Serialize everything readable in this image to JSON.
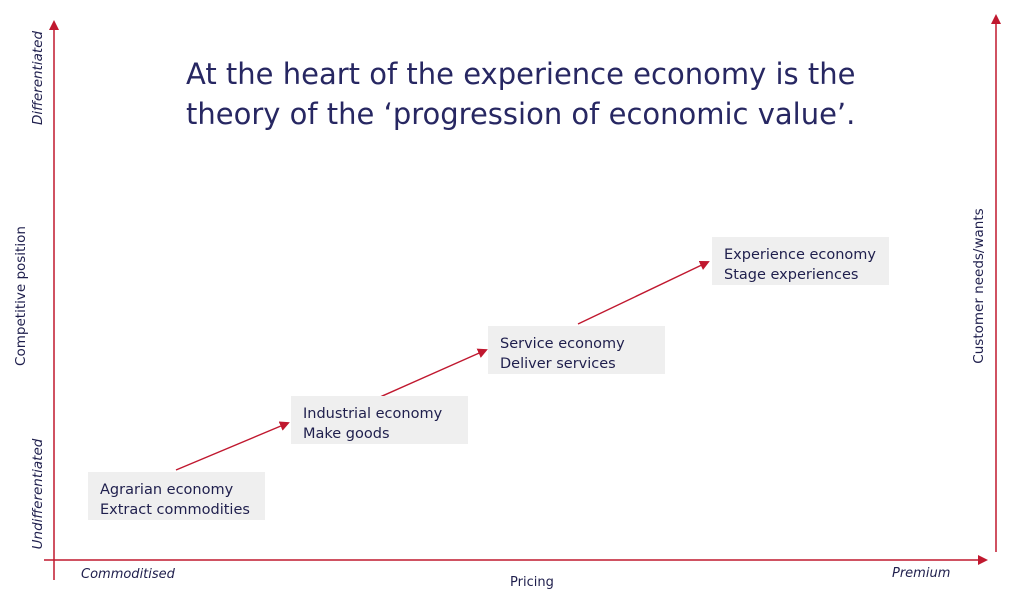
{
  "title": {
    "line1": "At the heart of the experience economy is the",
    "line2": "theory of the ‘progression of economic value’."
  },
  "axes": {
    "left_axis_label": "Competitive position",
    "left_top_label": "Differentiated",
    "left_bottom_label": "Undifferentiated",
    "right_axis_label": "Customer needs/wants",
    "bottom_axis_label": "Pricing",
    "bottom_left_label": "Commoditised",
    "bottom_right_label": "Premium"
  },
  "stages": [
    {
      "name": "Agrarian economy",
      "activity": "Extract commodities"
    },
    {
      "name": "Industrial economy",
      "activity": "Make goods"
    },
    {
      "name": "Service economy",
      "activity": "Deliver services"
    },
    {
      "name": "Experience economy",
      "activity": "Stage experiences"
    }
  ],
  "colors": {
    "axis": "#c0182f",
    "text": "#1f1f4d",
    "title": "#272762",
    "box_fill": "#efefef"
  }
}
